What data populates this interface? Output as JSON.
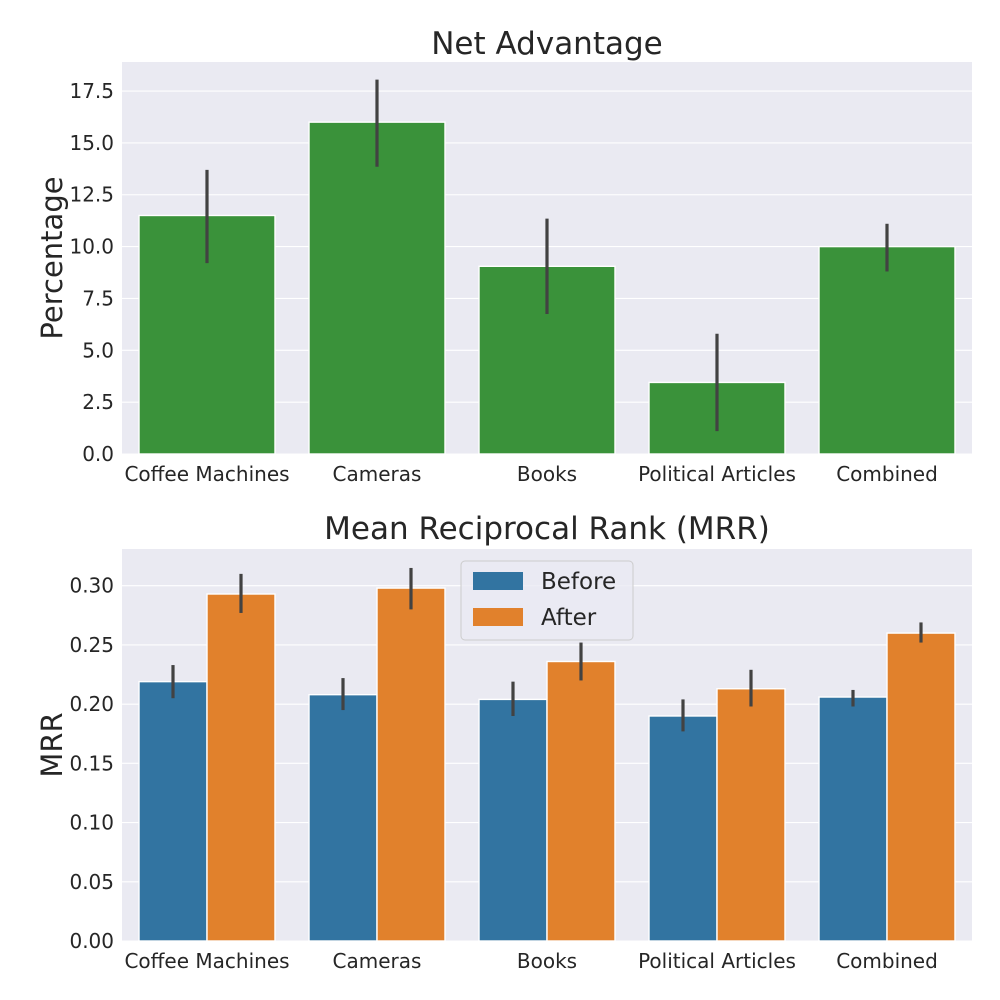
{
  "chart_data": [
    {
      "type": "bar",
      "title": "Net Advantage",
      "ylabel": "Percentage",
      "xlabel": "",
      "categories": [
        "Coffee Machines",
        "Cameras",
        "Books",
        "Political Articles",
        "Combined"
      ],
      "series": [
        {
          "values": [
            11.5,
            16.0,
            9.05,
            3.45,
            10.0
          ],
          "error_low": [
            9.2,
            13.85,
            6.75,
            1.1,
            8.8
          ],
          "error_high": [
            13.7,
            18.05,
            11.35,
            5.8,
            11.1
          ],
          "color": "#3a923a"
        }
      ],
      "ylim": [
        0,
        18.9
      ],
      "yticks": [
        0.0,
        2.5,
        5.0,
        7.5,
        10.0,
        12.5,
        15.0,
        17.5
      ],
      "ytick_labels": [
        "0.0",
        "2.5",
        "5.0",
        "7.5",
        "10.0",
        "12.5",
        "15.0",
        "17.5"
      ],
      "grid": true,
      "legend": null
    },
    {
      "type": "bar",
      "title": "Mean Reciprocal Rank (MRR)",
      "ylabel": "MRR",
      "xlabel": "",
      "categories": [
        "Coffee Machines",
        "Cameras",
        "Books",
        "Political Articles",
        "Combined"
      ],
      "series": [
        {
          "name": "Before",
          "values": [
            0.219,
            0.208,
            0.204,
            0.19,
            0.206
          ],
          "error_low": [
            0.205,
            0.195,
            0.19,
            0.177,
            0.198
          ],
          "error_high": [
            0.233,
            0.222,
            0.219,
            0.204,
            0.212
          ],
          "color": "#3274a1"
        },
        {
          "name": "After",
          "values": [
            0.293,
            0.298,
            0.236,
            0.213,
            0.26
          ],
          "error_low": [
            0.277,
            0.28,
            0.22,
            0.198,
            0.252
          ],
          "error_high": [
            0.31,
            0.315,
            0.252,
            0.229,
            0.269
          ],
          "color": "#e1812c"
        }
      ],
      "ylim": [
        0,
        0.331
      ],
      "yticks": [
        0.0,
        0.05,
        0.1,
        0.15,
        0.2,
        0.25,
        0.3
      ],
      "ytick_labels": [
        "0.00",
        "0.05",
        "0.10",
        "0.15",
        "0.20",
        "0.25",
        "0.30"
      ],
      "grid": true,
      "legend": "upper center"
    }
  ],
  "colors": {
    "plot_background": "#eaeaf2",
    "grid": "#ffffff",
    "error_bar": "#424242",
    "text": "#262626"
  }
}
